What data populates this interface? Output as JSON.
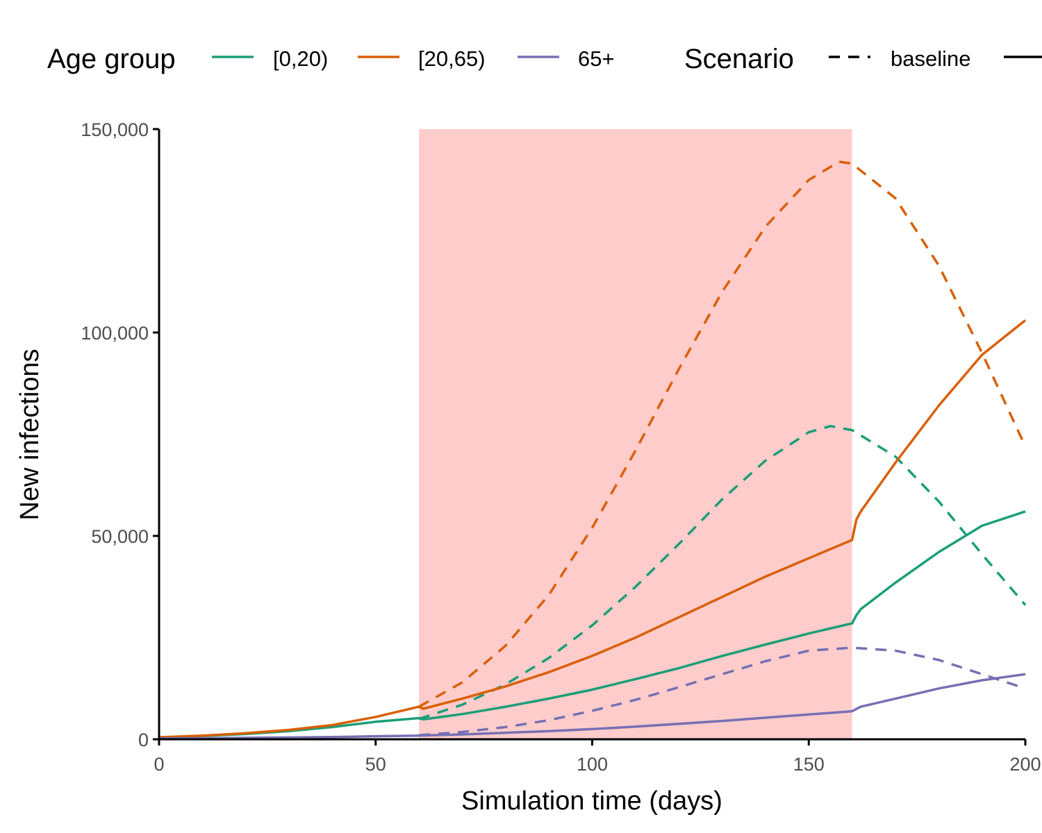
{
  "chart_data": {
    "type": "line",
    "xlabel": "Simulation time (days)",
    "ylabel": "New infections",
    "xlim": [
      0,
      200
    ],
    "ylim": [
      0,
      150000
    ],
    "x_ticks": [
      0,
      50,
      100,
      150,
      200
    ],
    "x_tick_labels": [
      "0",
      "50",
      "100",
      "150",
      "200"
    ],
    "y_ticks": [
      0,
      50000,
      100000,
      150000
    ],
    "y_tick_labels": [
      "0",
      "50,000",
      "100,000",
      "150,000"
    ],
    "grid": false,
    "legend_position": "top",
    "shaded_region": {
      "x_start": 60,
      "x_end": 160,
      "color": "#ffcccc"
    },
    "legends": {
      "age_group": {
        "title": "Age group",
        "entries": [
          {
            "label": "[0,20)",
            "color": "#1b9e77"
          },
          {
            "label": "[20,65)",
            "color": "#d95f02"
          },
          {
            "label": "65+",
            "color": "#7570b3"
          }
        ]
      },
      "scenario": {
        "title": "Scenario",
        "entries": [
          {
            "label": "baseline",
            "dash": "dashed"
          },
          {
            "label": "",
            "dash": "solid"
          }
        ]
      }
    },
    "series": [
      {
        "age_group": "[0,20)",
        "scenario": "baseline",
        "color": "#1b9e77",
        "dash": "dashed",
        "x": [
          60,
          70,
          80,
          90,
          100,
          110,
          120,
          130,
          140,
          150,
          155,
          160,
          170,
          180,
          190,
          200
        ],
        "y": [
          5000,
          8500,
          13500,
          20000,
          28000,
          37500,
          48000,
          59000,
          68500,
          75500,
          77000,
          76000,
          69500,
          58500,
          45500,
          33000
        ]
      },
      {
        "age_group": "[20,65)",
        "scenario": "baseline",
        "color": "#d95f02",
        "dash": "dashed",
        "x": [
          60,
          70,
          80,
          90,
          100,
          110,
          120,
          130,
          140,
          150,
          157,
          160,
          170,
          180,
          190,
          200
        ],
        "y": [
          8000,
          14000,
          23000,
          35500,
          52000,
          71000,
          91000,
          110000,
          126000,
          137500,
          142000,
          141500,
          133000,
          116500,
          95000,
          72000
        ]
      },
      {
        "age_group": "65+",
        "scenario": "baseline",
        "color": "#7570b3",
        "dash": "dashed",
        "x": [
          60,
          70,
          80,
          90,
          100,
          110,
          120,
          130,
          140,
          150,
          160,
          170,
          180,
          190,
          200
        ],
        "y": [
          1000,
          1800,
          3000,
          4700,
          7000,
          9700,
          12800,
          16000,
          19200,
          21800,
          22500,
          21800,
          19500,
          16000,
          12500
        ]
      },
      {
        "age_group": "[0,20)",
        "scenario": "intervention",
        "color": "#1b9e77",
        "dash": "solid",
        "x": [
          0,
          10,
          20,
          30,
          40,
          50,
          60,
          61,
          70,
          80,
          90,
          100,
          110,
          120,
          130,
          140,
          150,
          160,
          161,
          162,
          170,
          180,
          190,
          200
        ],
        "y": [
          500,
          800,
          1300,
          2000,
          3000,
          4300,
          5200,
          4900,
          6200,
          8000,
          10000,
          12200,
          14800,
          17500,
          20500,
          23300,
          26000,
          28500,
          30500,
          32000,
          38500,
          46000,
          52500,
          56000
        ]
      },
      {
        "age_group": "[20,65)",
        "scenario": "intervention",
        "color": "#d95f02",
        "dash": "solid",
        "x": [
          0,
          10,
          20,
          30,
          40,
          50,
          60,
          61,
          70,
          80,
          90,
          100,
          110,
          120,
          130,
          140,
          150,
          160,
          161,
          162,
          170,
          180,
          190,
          200
        ],
        "y": [
          500,
          900,
          1500,
          2300,
          3500,
          5500,
          8000,
          7500,
          10000,
          13000,
          16500,
          20500,
          25000,
          30000,
          35000,
          40000,
          44500,
          49000,
          54000,
          56000,
          68000,
          82000,
          94500,
          103000
        ]
      },
      {
        "age_group": "65+",
        "scenario": "intervention",
        "color": "#7570b3",
        "dash": "solid",
        "x": [
          0,
          10,
          20,
          30,
          40,
          50,
          60,
          70,
          80,
          90,
          100,
          110,
          120,
          130,
          140,
          150,
          160,
          162,
          170,
          180,
          190,
          200
        ],
        "y": [
          200,
          250,
          350,
          450,
          550,
          750,
          900,
          1200,
          1600,
          2000,
          2500,
          3100,
          3800,
          4500,
          5300,
          6100,
          6900,
          8000,
          10000,
          12500,
          14500,
          16000
        ]
      }
    ]
  }
}
